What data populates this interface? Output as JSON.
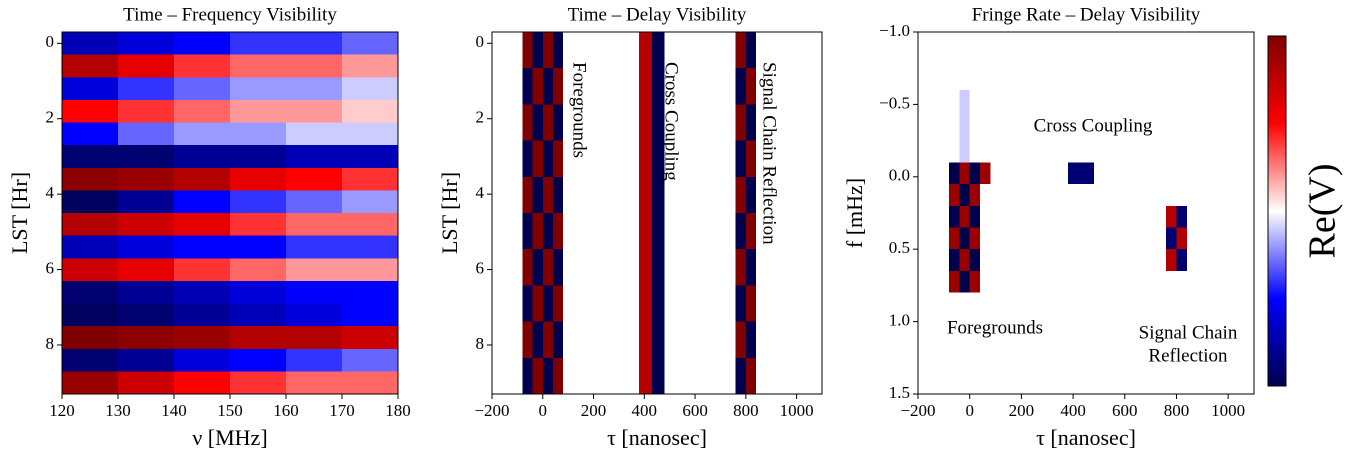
{
  "chart_data": [
    {
      "type": "heatmap",
      "title": "Time – Frequency Visibility",
      "x_label": "ν [MHz]",
      "y_label": "LST [Hr]",
      "colormap": "seismic",
      "zlim": [
        -1,
        1
      ],
      "xlim": [
        120,
        180
      ],
      "ylim": [
        9.3,
        -0.3
      ],
      "xticks": [
        120,
        130,
        140,
        150,
        160,
        170,
        180
      ],
      "yticks": [
        0,
        2,
        4,
        6,
        8
      ],
      "x_bins": [
        120,
        130,
        140,
        150,
        160,
        170,
        180
      ],
      "y_bins": [
        -0.3,
        0.3,
        0.9,
        1.5,
        2.1,
        2.7,
        3.3,
        3.9,
        4.5,
        5.1,
        5.7,
        6.3,
        6.9,
        7.5,
        8.1,
        8.7,
        9.3
      ],
      "z": [
        [
          -0.7,
          -0.6,
          -0.5,
          -0.4,
          -0.4,
          -0.3
        ],
        [
          0.8,
          0.6,
          0.4,
          0.3,
          0.3,
          0.2
        ],
        [
          -0.6,
          -0.4,
          -0.3,
          -0.2,
          -0.2,
          -0.1
        ],
        [
          0.5,
          0.4,
          0.3,
          0.2,
          0.2,
          0.1
        ],
        [
          -0.5,
          -0.3,
          -0.2,
          -0.2,
          -0.1,
          -0.1
        ],
        [
          -0.9,
          -0.9,
          -0.8,
          -0.8,
          -0.7,
          -0.7
        ],
        [
          0.95,
          0.9,
          0.8,
          0.6,
          0.5,
          0.4
        ],
        [
          -0.95,
          -0.8,
          -0.5,
          -0.4,
          -0.3,
          -0.2
        ],
        [
          0.8,
          0.7,
          0.6,
          0.4,
          0.3,
          0.3
        ],
        [
          -0.7,
          -0.6,
          -0.5,
          -0.5,
          -0.4,
          -0.4
        ],
        [
          0.7,
          0.6,
          0.4,
          0.3,
          0.2,
          0.2
        ],
        [
          -0.9,
          -0.8,
          -0.7,
          -0.6,
          -0.5,
          -0.5
        ],
        [
          -0.95,
          -0.9,
          -0.8,
          -0.7,
          -0.6,
          -0.5
        ],
        [
          1,
          0.95,
          0.9,
          0.8,
          0.8,
          0.7
        ],
        [
          -0.9,
          -0.8,
          -0.6,
          -0.5,
          -0.4,
          -0.3
        ],
        [
          0.9,
          0.7,
          0.5,
          0.4,
          0.3,
          0.3
        ]
      ]
    },
    {
      "type": "heatmap",
      "title": "Time – Delay Visibility",
      "x_label": "τ [nanosec]",
      "y_label": "LST [Hr]",
      "colormap": "seismic",
      "zlim": [
        -1,
        1
      ],
      "xlim": [
        -200,
        1100
      ],
      "ylim": [
        9.3,
        -0.3
      ],
      "xticks": [
        {
          "value": -200,
          "label": "−200"
        },
        0,
        200,
        400,
        600,
        800,
        1000
      ],
      "yticks": [
        0,
        2,
        4,
        6,
        8
      ],
      "x_bins": [
        -200,
        -80,
        -40,
        0,
        40,
        80,
        380,
        430,
        480,
        760,
        800,
        840,
        1100
      ],
      "y_bins": [
        -0.3,
        0.66,
        1.62,
        2.58,
        3.54,
        4.5,
        5.46,
        6.42,
        7.38,
        8.34,
        9.3
      ],
      "z": [
        [
          0,
          1,
          -1,
          1,
          -1,
          0,
          0.8,
          -1,
          0,
          1,
          -1,
          0
        ],
        [
          0,
          -1,
          1,
          -1,
          1,
          0,
          0.8,
          -1,
          0,
          -1,
          1,
          0
        ],
        [
          0,
          1,
          -1,
          1,
          -1,
          0,
          0.8,
          -1,
          0,
          1,
          -1,
          0
        ],
        [
          0,
          -1,
          1,
          -1,
          1,
          0,
          0.8,
          -1,
          0,
          -1,
          1,
          0
        ],
        [
          0,
          1,
          -1,
          1,
          -1,
          0,
          0.8,
          -1,
          0,
          1,
          -1,
          0
        ],
        [
          0,
          -1,
          1,
          -1,
          1,
          0,
          0.8,
          -1,
          0,
          -1,
          1,
          0
        ],
        [
          0,
          1,
          -1,
          1,
          -1,
          0,
          0.8,
          -1,
          0,
          1,
          -1,
          0
        ],
        [
          0,
          -1,
          1,
          -1,
          1,
          0,
          0.8,
          -1,
          0,
          -1,
          1,
          0
        ],
        [
          0,
          1,
          -1,
          1,
          -1,
          0,
          0.8,
          -1,
          0,
          1,
          -1,
          0
        ],
        [
          0,
          -1,
          1,
          -1,
          1,
          0,
          0.8,
          -1,
          0,
          -1,
          1,
          0
        ]
      ],
      "annotations": [
        "Foregrounds",
        "Cross Coupling",
        "Signal Chain Reflection"
      ]
    },
    {
      "type": "heatmap",
      "title": "Fringe Rate – Delay Visibility",
      "x_label": "τ [nanosec]",
      "y_label": "f [mHz]",
      "colormap": "seismic",
      "zlim": [
        -1,
        1
      ],
      "xlim": [
        -200,
        1100
      ],
      "ylim": [
        1.5,
        -1.0
      ],
      "xticks": [
        {
          "value": -200,
          "label": "−200"
        },
        0,
        200,
        400,
        600,
        800,
        1000
      ],
      "yticks": [
        {
          "value": -1.0,
          "label": "−1.0"
        },
        {
          "value": -0.5,
          "label": "−0.5"
        },
        {
          "value": 0.0,
          "label": "0.0"
        },
        {
          "value": 0.5,
          "label": "0.5"
        },
        {
          "value": 1.0,
          "label": "1.0"
        },
        {
          "value": 1.5,
          "label": "1.5"
        }
      ],
      "x_bins": [
        -200,
        -80,
        -40,
        0,
        40,
        80,
        380,
        430,
        480,
        760,
        800,
        840,
        1100
      ],
      "y_bins": [
        -1.0,
        -0.6,
        -0.1,
        0.05,
        0.2,
        0.35,
        0.5,
        0.65,
        0.8,
        1.5
      ],
      "z": [
        [
          0,
          0,
          0,
          0,
          0,
          0,
          0,
          0,
          0,
          0,
          0,
          0
        ],
        [
          0,
          0,
          -0.1,
          0,
          0,
          0,
          0,
          0,
          0,
          0,
          0,
          0
        ],
        [
          0,
          -1,
          0.9,
          -1,
          0.9,
          0,
          -0.9,
          -0.9,
          0,
          0,
          0,
          0
        ],
        [
          0,
          0.9,
          -1,
          0.9,
          0,
          0,
          0,
          0,
          0,
          0,
          0,
          0
        ],
        [
          0,
          -1,
          0.9,
          -1,
          0,
          0,
          0,
          0,
          0,
          0.8,
          -0.9,
          0
        ],
        [
          0,
          0.9,
          -1,
          0.9,
          0,
          0,
          0,
          0,
          0,
          -0.9,
          0.8,
          0
        ],
        [
          0,
          -1,
          0.9,
          -1,
          0,
          0,
          0,
          0,
          0,
          0.8,
          -0.9,
          0
        ],
        [
          0,
          0.9,
          -1,
          0.9,
          0,
          0,
          0,
          0,
          0,
          0,
          0,
          0
        ],
        [
          0,
          0,
          0,
          0,
          0,
          0,
          0,
          0,
          0,
          0,
          0,
          0
        ]
      ],
      "annotations": [
        "Cross Coupling",
        "Foregrounds",
        "Signal Chain",
        "Reflection"
      ],
      "colorbar_label": "Re(V)"
    }
  ]
}
